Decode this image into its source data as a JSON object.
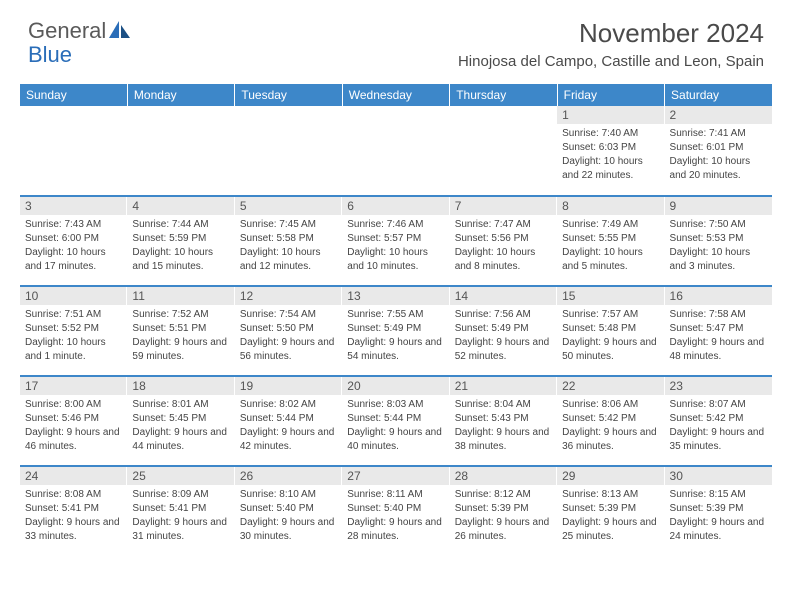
{
  "logo": {
    "part1": "General",
    "part2": "Blue"
  },
  "title": "November 2024",
  "location": "Hinojosa del Campo, Castille and Leon, Spain",
  "colors": {
    "header_bg": "#3d87c9",
    "header_text": "#ffffff",
    "daynum_bg": "#e9e9e9",
    "border": "#3d87c9",
    "text": "#444444",
    "logo_gray": "#5a5a5a",
    "logo_blue": "#2a6db8"
  },
  "typography": {
    "title_fontsize": 26,
    "location_fontsize": 15,
    "weekday_fontsize": 12,
    "cell_fontsize": 10
  },
  "weekdays": [
    "Sunday",
    "Monday",
    "Tuesday",
    "Wednesday",
    "Thursday",
    "Friday",
    "Saturday"
  ],
  "weeks": [
    [
      {
        "n": "",
        "sr": "",
        "ss": "",
        "dl": ""
      },
      {
        "n": "",
        "sr": "",
        "ss": "",
        "dl": ""
      },
      {
        "n": "",
        "sr": "",
        "ss": "",
        "dl": ""
      },
      {
        "n": "",
        "sr": "",
        "ss": "",
        "dl": ""
      },
      {
        "n": "",
        "sr": "",
        "ss": "",
        "dl": ""
      },
      {
        "n": "1",
        "sr": "Sunrise: 7:40 AM",
        "ss": "Sunset: 6:03 PM",
        "dl": "Daylight: 10 hours and 22 minutes."
      },
      {
        "n": "2",
        "sr": "Sunrise: 7:41 AM",
        "ss": "Sunset: 6:01 PM",
        "dl": "Daylight: 10 hours and 20 minutes."
      }
    ],
    [
      {
        "n": "3",
        "sr": "Sunrise: 7:43 AM",
        "ss": "Sunset: 6:00 PM",
        "dl": "Daylight: 10 hours and 17 minutes."
      },
      {
        "n": "4",
        "sr": "Sunrise: 7:44 AM",
        "ss": "Sunset: 5:59 PM",
        "dl": "Daylight: 10 hours and 15 minutes."
      },
      {
        "n": "5",
        "sr": "Sunrise: 7:45 AM",
        "ss": "Sunset: 5:58 PM",
        "dl": "Daylight: 10 hours and 12 minutes."
      },
      {
        "n": "6",
        "sr": "Sunrise: 7:46 AM",
        "ss": "Sunset: 5:57 PM",
        "dl": "Daylight: 10 hours and 10 minutes."
      },
      {
        "n": "7",
        "sr": "Sunrise: 7:47 AM",
        "ss": "Sunset: 5:56 PM",
        "dl": "Daylight: 10 hours and 8 minutes."
      },
      {
        "n": "8",
        "sr": "Sunrise: 7:49 AM",
        "ss": "Sunset: 5:55 PM",
        "dl": "Daylight: 10 hours and 5 minutes."
      },
      {
        "n": "9",
        "sr": "Sunrise: 7:50 AM",
        "ss": "Sunset: 5:53 PM",
        "dl": "Daylight: 10 hours and 3 minutes."
      }
    ],
    [
      {
        "n": "10",
        "sr": "Sunrise: 7:51 AM",
        "ss": "Sunset: 5:52 PM",
        "dl": "Daylight: 10 hours and 1 minute."
      },
      {
        "n": "11",
        "sr": "Sunrise: 7:52 AM",
        "ss": "Sunset: 5:51 PM",
        "dl": "Daylight: 9 hours and 59 minutes."
      },
      {
        "n": "12",
        "sr": "Sunrise: 7:54 AM",
        "ss": "Sunset: 5:50 PM",
        "dl": "Daylight: 9 hours and 56 minutes."
      },
      {
        "n": "13",
        "sr": "Sunrise: 7:55 AM",
        "ss": "Sunset: 5:49 PM",
        "dl": "Daylight: 9 hours and 54 minutes."
      },
      {
        "n": "14",
        "sr": "Sunrise: 7:56 AM",
        "ss": "Sunset: 5:49 PM",
        "dl": "Daylight: 9 hours and 52 minutes."
      },
      {
        "n": "15",
        "sr": "Sunrise: 7:57 AM",
        "ss": "Sunset: 5:48 PM",
        "dl": "Daylight: 9 hours and 50 minutes."
      },
      {
        "n": "16",
        "sr": "Sunrise: 7:58 AM",
        "ss": "Sunset: 5:47 PM",
        "dl": "Daylight: 9 hours and 48 minutes."
      }
    ],
    [
      {
        "n": "17",
        "sr": "Sunrise: 8:00 AM",
        "ss": "Sunset: 5:46 PM",
        "dl": "Daylight: 9 hours and 46 minutes."
      },
      {
        "n": "18",
        "sr": "Sunrise: 8:01 AM",
        "ss": "Sunset: 5:45 PM",
        "dl": "Daylight: 9 hours and 44 minutes."
      },
      {
        "n": "19",
        "sr": "Sunrise: 8:02 AM",
        "ss": "Sunset: 5:44 PM",
        "dl": "Daylight: 9 hours and 42 minutes."
      },
      {
        "n": "20",
        "sr": "Sunrise: 8:03 AM",
        "ss": "Sunset: 5:44 PM",
        "dl": "Daylight: 9 hours and 40 minutes."
      },
      {
        "n": "21",
        "sr": "Sunrise: 8:04 AM",
        "ss": "Sunset: 5:43 PM",
        "dl": "Daylight: 9 hours and 38 minutes."
      },
      {
        "n": "22",
        "sr": "Sunrise: 8:06 AM",
        "ss": "Sunset: 5:42 PM",
        "dl": "Daylight: 9 hours and 36 minutes."
      },
      {
        "n": "23",
        "sr": "Sunrise: 8:07 AM",
        "ss": "Sunset: 5:42 PM",
        "dl": "Daylight: 9 hours and 35 minutes."
      }
    ],
    [
      {
        "n": "24",
        "sr": "Sunrise: 8:08 AM",
        "ss": "Sunset: 5:41 PM",
        "dl": "Daylight: 9 hours and 33 minutes."
      },
      {
        "n": "25",
        "sr": "Sunrise: 8:09 AM",
        "ss": "Sunset: 5:41 PM",
        "dl": "Daylight: 9 hours and 31 minutes."
      },
      {
        "n": "26",
        "sr": "Sunrise: 8:10 AM",
        "ss": "Sunset: 5:40 PM",
        "dl": "Daylight: 9 hours and 30 minutes."
      },
      {
        "n": "27",
        "sr": "Sunrise: 8:11 AM",
        "ss": "Sunset: 5:40 PM",
        "dl": "Daylight: 9 hours and 28 minutes."
      },
      {
        "n": "28",
        "sr": "Sunrise: 8:12 AM",
        "ss": "Sunset: 5:39 PM",
        "dl": "Daylight: 9 hours and 26 minutes."
      },
      {
        "n": "29",
        "sr": "Sunrise: 8:13 AM",
        "ss": "Sunset: 5:39 PM",
        "dl": "Daylight: 9 hours and 25 minutes."
      },
      {
        "n": "30",
        "sr": "Sunrise: 8:15 AM",
        "ss": "Sunset: 5:39 PM",
        "dl": "Daylight: 9 hours and 24 minutes."
      }
    ]
  ]
}
